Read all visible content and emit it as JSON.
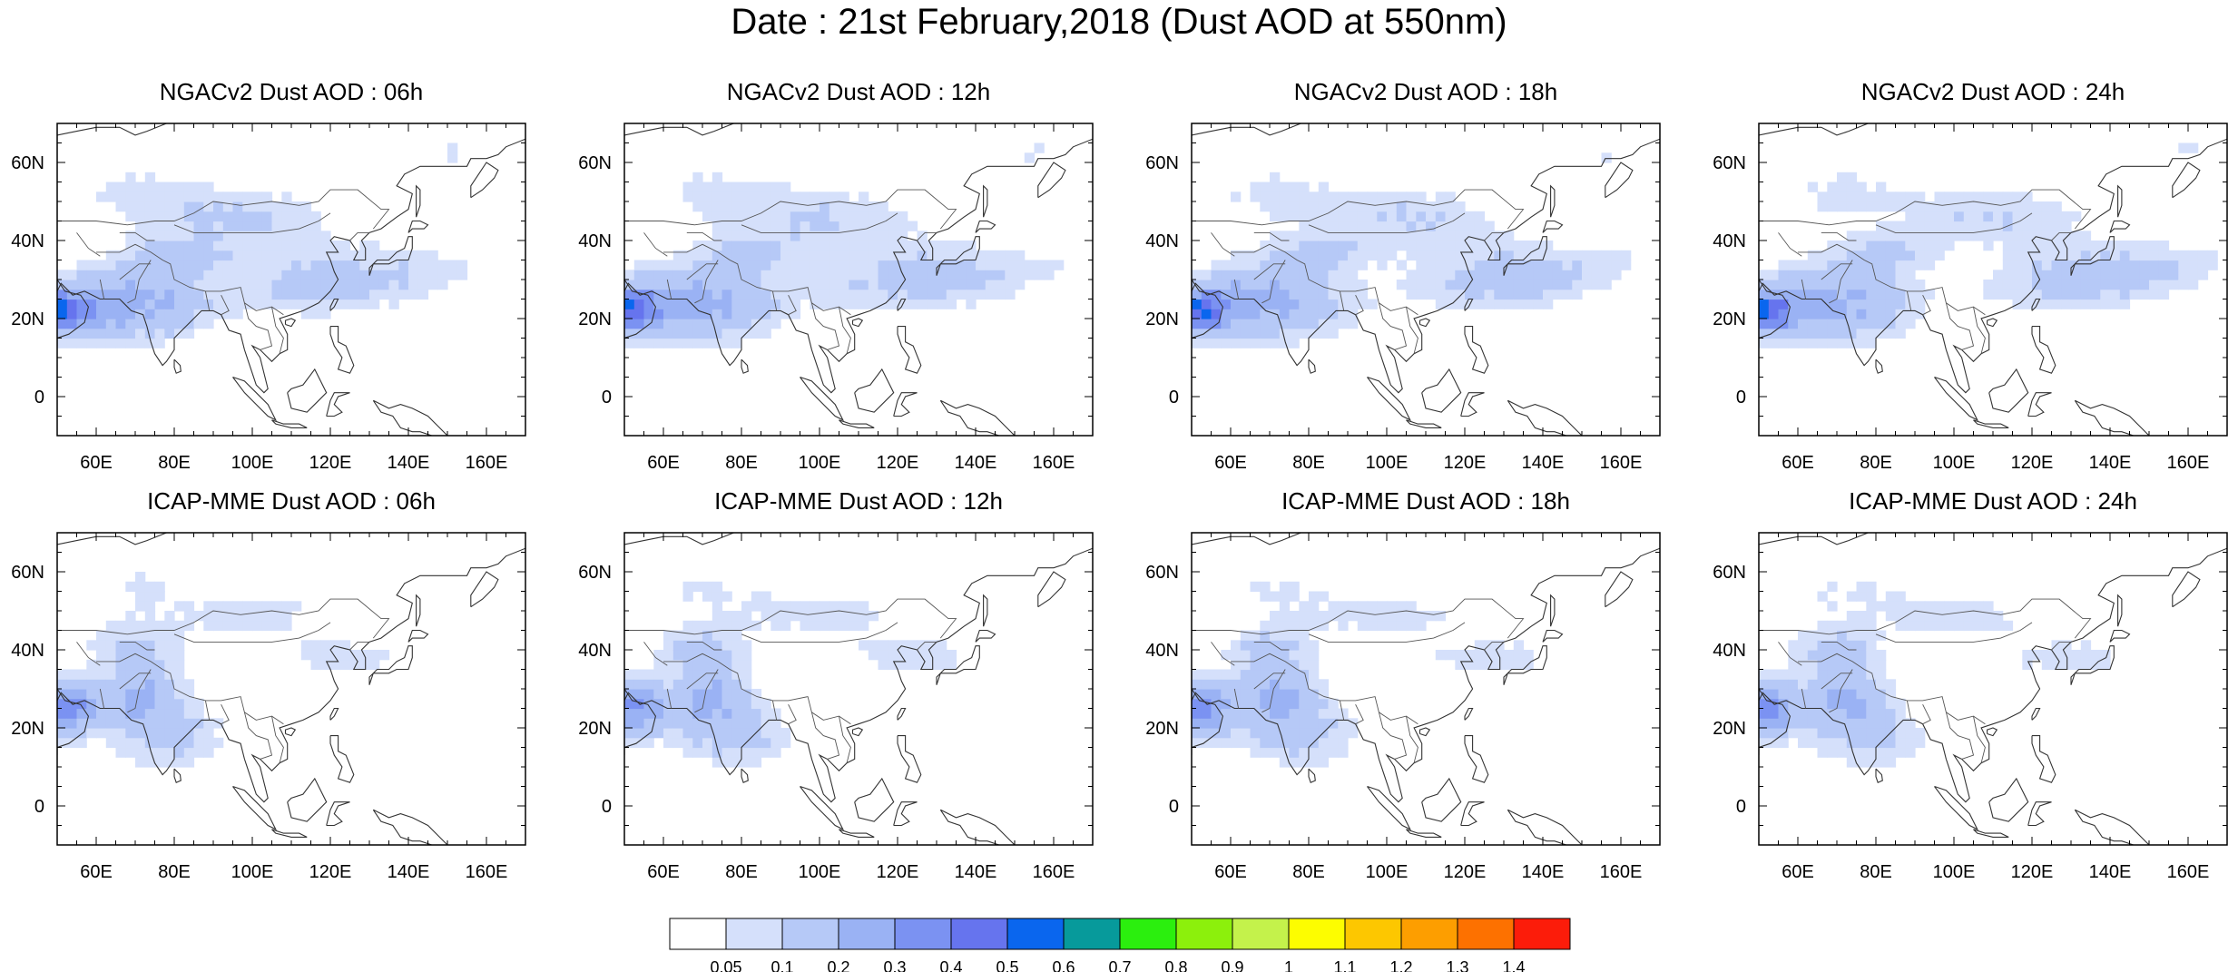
{
  "title": "Date : 21st February,2018 (Dust AOD at 550nm)",
  "map": {
    "lon_ticks": [
      "60E",
      "80E",
      "100E",
      "120E",
      "140E",
      "160E"
    ],
    "lat_ticks": [
      "60N",
      "40N",
      "20N",
      "0"
    ],
    "lon_values": [
      60,
      80,
      100,
      120,
      140,
      160
    ],
    "lat_values": [
      60,
      40,
      20,
      0
    ],
    "lon_range": [
      50,
      170
    ],
    "lat_range": [
      -10,
      70
    ]
  },
  "panels": [
    {
      "title": "NGACv2 Dust AOD : 06h",
      "model": "NGACv2",
      "lead": "06h"
    },
    {
      "title": "NGACv2 Dust AOD : 12h",
      "model": "NGACv2",
      "lead": "12h"
    },
    {
      "title": "NGACv2 Dust AOD : 18h",
      "model": "NGACv2",
      "lead": "18h"
    },
    {
      "title": "NGACv2 Dust AOD : 24h",
      "model": "NGACv2",
      "lead": "24h"
    },
    {
      "title": "ICAP-MME Dust AOD : 06h",
      "model": "ICAP-MME",
      "lead": "06h"
    },
    {
      "title": "ICAP-MME Dust AOD : 12h",
      "model": "ICAP-MME",
      "lead": "12h"
    },
    {
      "title": "ICAP-MME Dust AOD : 18h",
      "model": "ICAP-MME",
      "lead": "18h"
    },
    {
      "title": "ICAP-MME Dust AOD : 24h",
      "model": "ICAP-MME",
      "lead": "24h"
    }
  ],
  "colorbar": {
    "labels": [
      "0.05",
      "0.1",
      "0.2",
      "0.3",
      "0.4",
      "0.5",
      "0.6",
      "0.7",
      "0.8",
      "0.9",
      "1",
      "1.1",
      "1.2",
      "1.3",
      "1.4"
    ],
    "colors": [
      "#ffffff",
      "#d5e0fb",
      "#b6c9f7",
      "#9ab2f4",
      "#7b92f2",
      "#6674ee",
      "#0a66ee",
      "#079a9b",
      "#2bef0e",
      "#8cf00c",
      "#c4f24b",
      "#fdfd00",
      "#fdc700",
      "#fd9e00",
      "#fd7100",
      "#fc1c0a"
    ]
  }
}
